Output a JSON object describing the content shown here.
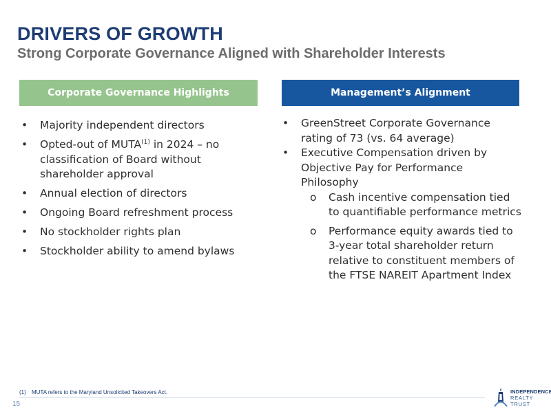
{
  "header": {
    "title": "DRIVERS OF GROWTH",
    "subtitle": "Strong Corporate Governance Aligned with Shareholder Interests"
  },
  "left_column": {
    "heading": "Corporate Governance Highlights",
    "bullets": [
      "Majority independent directors",
      "Opted-out of MUTA",
      "(1)",
      " in 2024 – no classification of Board without shareholder approval",
      "Annual election of directors",
      "Ongoing Board refreshment process",
      "No stockholder rights plan",
      "Stockholder ability to amend bylaws"
    ]
  },
  "right_column": {
    "heading": "Management’s Alignment",
    "bullets": [
      "GreenStreet Corporate Governance rating of 73 (vs. 64 average)",
      "Executive Compensation driven by Objective Pay for Performance Philosophy"
    ],
    "sub_bullets": [
      "Cash incentive compensation tied to quantifiable performance metrics",
      "Performance equity awards tied to 3-year total shareholder return relative to constituent members of the FTSE NAREIT Apartment Index"
    ]
  },
  "symbols": {
    "bullet": "•",
    "sub_bullet": "o"
  },
  "footer": {
    "footnote_number": "(1)",
    "footnote_text": "MUTA refers to the Maryland Unsolicited Takeovers Act.",
    "page_number": "15",
    "logo_line1": "INDEPENDENCE",
    "logo_line2": "REALTY TRUST"
  },
  "colors": {
    "title": "#1c3c73",
    "subtitle": "#6c6c6c",
    "left_heading_bg": "#96c48d",
    "right_heading_bg": "#1757a0"
  }
}
